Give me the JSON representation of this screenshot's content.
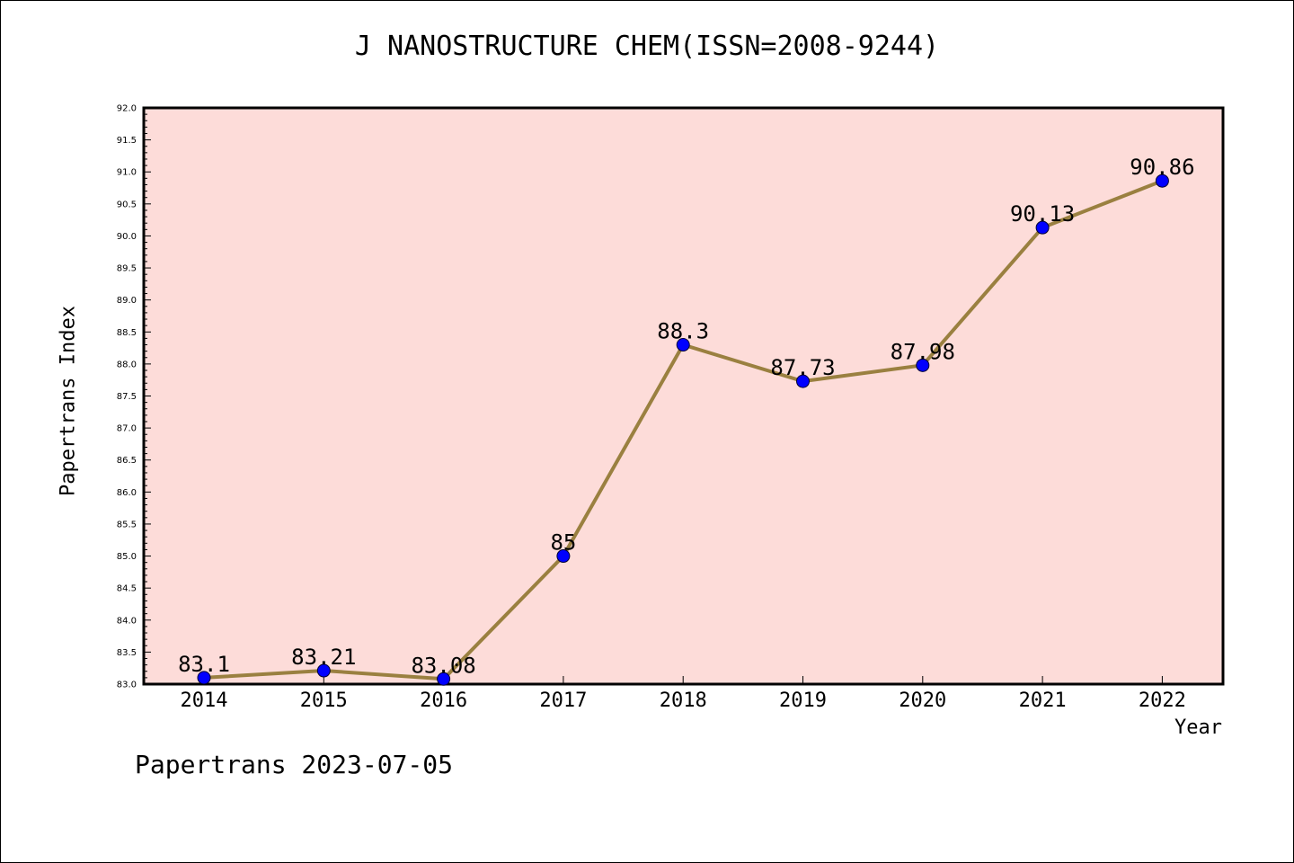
{
  "chart_data": {
    "type": "line",
    "title": "J NANOSTRUCTURE CHEM(ISSN=2008-9244)",
    "xlabel": "Year",
    "ylabel": "Papertrans Index",
    "categories": [
      "2014",
      "2015",
      "2016",
      "2017",
      "2018",
      "2019",
      "2020",
      "2021",
      "2022"
    ],
    "values": [
      83.1,
      83.21,
      83.08,
      85,
      88.3,
      87.73,
      87.98,
      90.13,
      90.86
    ],
    "value_labels": [
      "83.1",
      "83.21",
      "83.08",
      "85",
      "88.3",
      "87.73",
      "87.98",
      "90.13",
      "90.86"
    ],
    "ylim": [
      83.0,
      92.0
    ],
    "yticks": [
      "83.0",
      "83.5",
      "84.0",
      "84.5",
      "85.0",
      "85.5",
      "86.0",
      "86.5",
      "87.0",
      "87.5",
      "88.0",
      "88.5",
      "89.0",
      "89.5",
      "90.0",
      "90.5",
      "91.0",
      "91.5",
      "92.0"
    ],
    "grid": false,
    "colors": {
      "plot_background": "#fddcd9",
      "line": "#9a8040",
      "marker": "#0000ff"
    }
  },
  "footer": "Papertrans 2023-07-05"
}
